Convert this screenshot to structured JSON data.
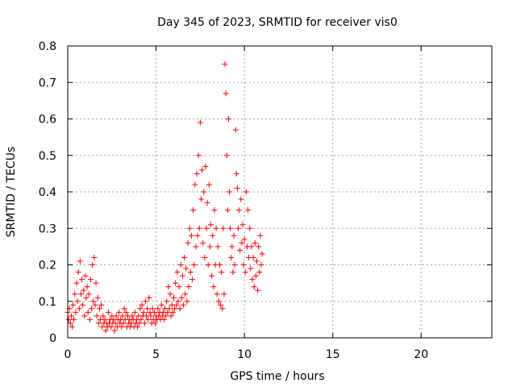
{
  "chart_data": {
    "type": "scatter",
    "title": "Day 345 of 2023, SRMTID for receiver vis0",
    "xlabel": "GPS time / hours",
    "ylabel": "SRMTID / TECUs",
    "xlim": [
      0,
      24
    ],
    "ylim": [
      0,
      0.8
    ],
    "xticks": [
      0,
      5,
      10,
      15,
      20
    ],
    "xtick_labels": [
      "0",
      "5",
      "10",
      "15",
      "20"
    ],
    "yticks": [
      0,
      0.1,
      0.2,
      0.3,
      0.4,
      0.5,
      0.6,
      0.7,
      0.8
    ],
    "ytick_labels": [
      "0",
      "0.1",
      "0.2",
      "0.3",
      "0.4",
      "0.5",
      "0.6",
      "0.7",
      "0.8"
    ],
    "grid": true,
    "marker": "+",
    "color": "#ff0000",
    "series": [
      {
        "name": "SRMTID",
        "x": [
          0.0,
          0.05,
          0.1,
          0.15,
          0.2,
          0.25,
          0.3,
          0.35,
          0.4,
          0.45,
          0.5,
          0.55,
          0.6,
          0.65,
          0.7,
          0.75,
          0.8,
          0.85,
          0.9,
          0.95,
          1.0,
          1.05,
          1.1,
          1.15,
          1.2,
          1.25,
          1.3,
          1.35,
          1.4,
          1.45,
          1.5,
          1.55,
          1.6,
          1.65,
          1.7,
          1.75,
          1.8,
          1.85,
          1.9,
          1.95,
          2.0,
          2.05,
          2.1,
          2.15,
          2.2,
          2.25,
          2.3,
          2.35,
          2.4,
          2.45,
          2.5,
          2.55,
          2.6,
          2.65,
          2.7,
          2.75,
          2.8,
          2.85,
          2.9,
          2.95,
          3.0,
          3.05,
          3.1,
          3.15,
          3.2,
          3.25,
          3.3,
          3.35,
          3.4,
          3.45,
          3.5,
          3.55,
          3.6,
          3.65,
          3.7,
          3.75,
          3.8,
          3.85,
          3.9,
          3.95,
          4.0,
          4.05,
          4.1,
          4.15,
          4.2,
          4.25,
          4.3,
          4.35,
          4.4,
          4.45,
          4.5,
          4.55,
          4.6,
          4.65,
          4.7,
          4.75,
          4.8,
          4.85,
          4.9,
          4.95,
          5.0,
          5.05,
          5.1,
          5.15,
          5.2,
          5.25,
          5.3,
          5.35,
          5.4,
          5.45,
          5.5,
          5.55,
          5.6,
          5.65,
          5.7,
          5.75,
          5.8,
          5.85,
          5.9,
          5.95,
          6.0,
          6.05,
          6.1,
          6.15,
          6.2,
          6.25,
          6.3,
          6.35,
          6.4,
          6.45,
          6.5,
          6.55,
          6.6,
          6.65,
          6.7,
          6.75,
          6.8,
          6.85,
          6.9,
          6.95,
          7.0,
          7.05,
          7.1,
          7.15,
          7.2,
          7.25,
          7.3,
          7.35,
          7.4,
          7.45,
          7.5,
          7.55,
          7.6,
          7.65,
          7.7,
          7.75,
          7.8,
          7.85,
          7.9,
          7.95,
          8.0,
          8.05,
          8.1,
          8.15,
          8.2,
          8.25,
          8.3,
          8.35,
          8.4,
          8.45,
          8.5,
          8.55,
          8.6,
          8.65,
          8.7,
          8.75,
          8.8,
          8.85,
          8.9,
          8.95,
          9.0,
          9.05,
          9.1,
          9.15,
          9.2,
          9.25,
          9.3,
          9.35,
          9.4,
          9.45,
          9.5,
          9.55,
          9.6,
          9.65,
          9.7,
          9.75,
          9.8,
          9.85,
          9.9,
          9.95,
          10.0,
          10.05,
          10.1,
          10.15,
          10.2,
          10.25,
          10.3,
          10.35,
          10.4,
          10.45,
          10.5,
          10.55,
          10.6,
          10.65,
          10.7,
          10.75,
          10.8,
          10.85,
          10.9,
          10.95,
          11.0
        ],
        "y": [
          0.07,
          0.05,
          0.08,
          0.04,
          0.06,
          0.03,
          0.09,
          0.05,
          0.12,
          0.07,
          0.15,
          0.1,
          0.18,
          0.08,
          0.21,
          0.12,
          0.16,
          0.09,
          0.13,
          0.06,
          0.17,
          0.11,
          0.14,
          0.07,
          0.12,
          0.05,
          0.16,
          0.08,
          0.2,
          0.1,
          0.22,
          0.09,
          0.15,
          0.06,
          0.11,
          0.04,
          0.08,
          0.05,
          0.09,
          0.03,
          0.06,
          0.04,
          0.05,
          0.02,
          0.04,
          0.03,
          0.07,
          0.04,
          0.05,
          0.03,
          0.06,
          0.04,
          0.05,
          0.02,
          0.04,
          0.06,
          0.03,
          0.05,
          0.07,
          0.04,
          0.05,
          0.03,
          0.06,
          0.04,
          0.08,
          0.05,
          0.07,
          0.03,
          0.06,
          0.04,
          0.05,
          0.03,
          0.04,
          0.06,
          0.05,
          0.03,
          0.07,
          0.04,
          0.05,
          0.03,
          0.06,
          0.04,
          0.08,
          0.05,
          0.09,
          0.06,
          0.07,
          0.04,
          0.1,
          0.06,
          0.08,
          0.05,
          0.11,
          0.07,
          0.06,
          0.04,
          0.08,
          0.05,
          0.07,
          0.04,
          0.06,
          0.05,
          0.08,
          0.06,
          0.07,
          0.05,
          0.09,
          0.06,
          0.07,
          0.05,
          0.08,
          0.06,
          0.1,
          0.07,
          0.14,
          0.08,
          0.12,
          0.06,
          0.09,
          0.07,
          0.11,
          0.08,
          0.15,
          0.09,
          0.18,
          0.1,
          0.14,
          0.08,
          0.2,
          0.11,
          0.17,
          0.09,
          0.22,
          0.12,
          0.19,
          0.1,
          0.26,
          0.14,
          0.3,
          0.18,
          0.28,
          0.16,
          0.35,
          0.2,
          0.42,
          0.25,
          0.45,
          0.28,
          0.5,
          0.3,
          0.59,
          0.38,
          0.46,
          0.26,
          0.4,
          0.22,
          0.47,
          0.3,
          0.37,
          0.2,
          0.42,
          0.25,
          0.31,
          0.17,
          0.28,
          0.14,
          0.35,
          0.2,
          0.3,
          0.12,
          0.25,
          0.1,
          0.2,
          0.09,
          0.18,
          0.08,
          0.3,
          0.12,
          0.75,
          0.67,
          0.5,
          0.35,
          0.6,
          0.4,
          0.3,
          0.22,
          0.25,
          0.18,
          0.28,
          0.2,
          0.57,
          0.45,
          0.41,
          0.3,
          0.35,
          0.24,
          0.38,
          0.26,
          0.31,
          0.2,
          0.27,
          0.18,
          0.4,
          0.25,
          0.35,
          0.22,
          0.3,
          0.19,
          0.25,
          0.16,
          0.22,
          0.14,
          0.26,
          0.17,
          0.21,
          0.13,
          0.25,
          0.18,
          0.28,
          0.2,
          0.23
        ]
      }
    ]
  }
}
